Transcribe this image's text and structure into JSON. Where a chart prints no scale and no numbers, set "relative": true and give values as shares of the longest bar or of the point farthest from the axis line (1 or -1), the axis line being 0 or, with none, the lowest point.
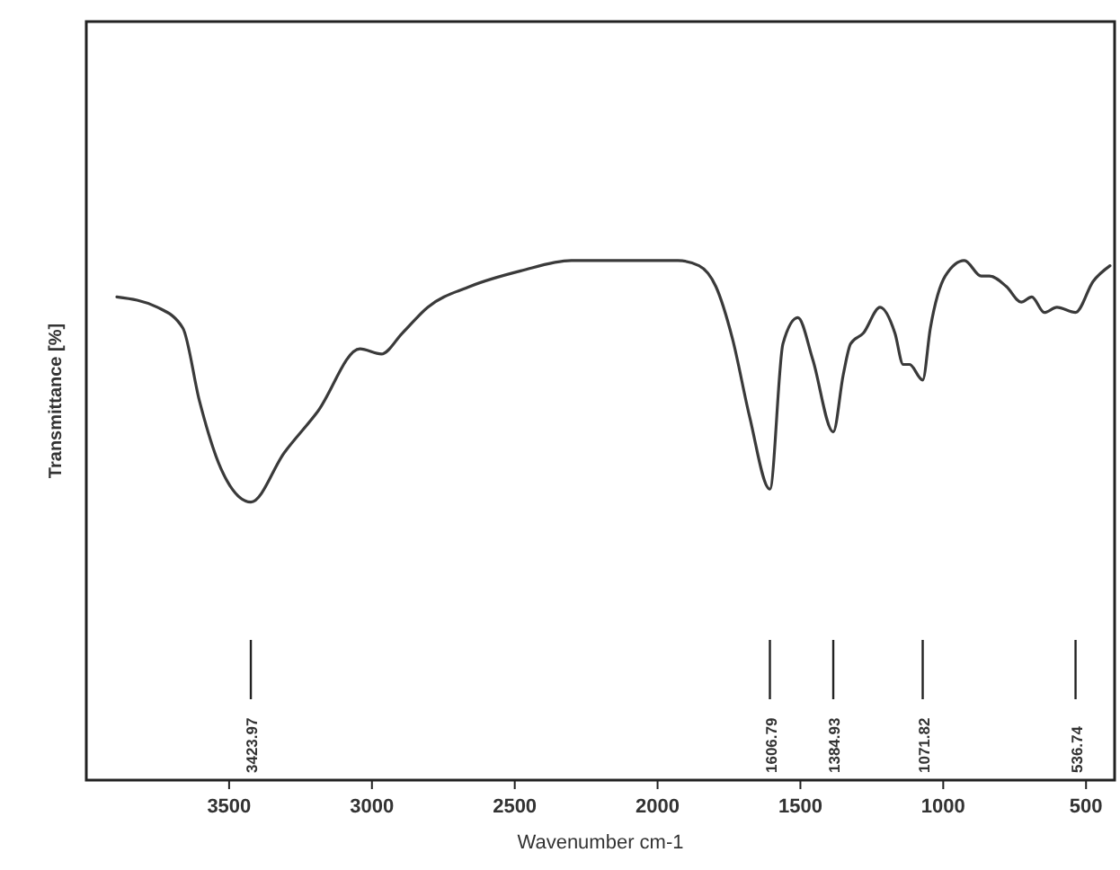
{
  "chart_data": {
    "type": "line",
    "relative": true,
    "xlabel": "Wavenumber cm-1",
    "ylabel": "Transmittance [%]",
    "color": "#3a3a3a",
    "xlim": [
      4000,
      400
    ],
    "xticks": [
      3500,
      3000,
      2500,
      2000,
      1500,
      1000,
      500
    ],
    "x": [
      3893,
      3751,
      3662,
      3604,
      3529,
      3424,
      3307,
      3189,
      3042,
      2967,
      2894,
      2805,
      2657,
      2479,
      2302,
      2000,
      1929,
      1855,
      1796,
      1738,
      1678,
      1607,
      1561,
      1509,
      1457,
      1385,
      1350,
      1324,
      1280,
      1221,
      1169,
      1140,
      1118,
      1072,
      1045,
      993,
      926,
      867,
      838,
      779,
      727,
      690,
      646,
      602,
      537,
      475,
      416
    ],
    "values": [
      0.93,
      0.91,
      0.87,
      0.73,
      0.6,
      0.535,
      0.63,
      0.71,
      0.83,
      0.82,
      0.86,
      0.91,
      0.95,
      0.98,
      1.0,
      1.0,
      1.0,
      0.99,
      0.95,
      0.85,
      0.7,
      0.56,
      0.84,
      0.89,
      0.81,
      0.67,
      0.78,
      0.84,
      0.86,
      0.91,
      0.86,
      0.8,
      0.8,
      0.77,
      0.87,
      0.97,
      1.0,
      0.97,
      0.97,
      0.95,
      0.92,
      0.93,
      0.9,
      0.91,
      0.9,
      0.96,
      0.99
    ],
    "ref_lines": [
      {
        "axis": "x",
        "value": 3423.97,
        "label": "3423.97"
      },
      {
        "axis": "x",
        "value": 1606.79,
        "label": "1606.79"
      },
      {
        "axis": "x",
        "value": 1384.93,
        "label": "1384.93"
      },
      {
        "axis": "x",
        "value": 1071.82,
        "label": "1071.82"
      },
      {
        "axis": "x",
        "value": 536.74,
        "label": "536.74"
      }
    ]
  }
}
